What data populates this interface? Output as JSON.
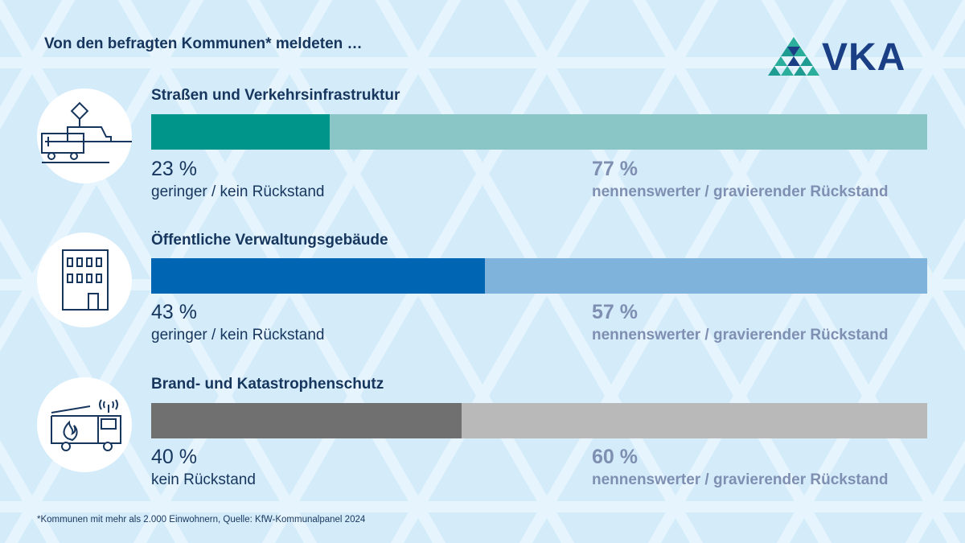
{
  "headline": "Von den befragten Kommunen* meldeten …",
  "logo_text": "VKA",
  "footnote": "*Kommunen mit mehr als 2.000 Einwohnern, Quelle: KfW-Kommunalpanel 2024",
  "chart_data": {
    "type": "bar",
    "orientation": "horizontal",
    "stacked": true,
    "title": "Von den befragten Kommunen* meldeten …",
    "categories": [
      "Straßen und Verkehrsinfrastruktur",
      "Öffentliche Verwaltungsgebäude",
      "Brand- und Katastrophenschutz"
    ],
    "icons": [
      "tram-bus-icon",
      "office-building-icon",
      "fire-truck-icon"
    ],
    "series": [
      {
        "values": [
          23,
          43,
          40
        ],
        "value_labels": [
          "23 %",
          "43 %",
          "40 %"
        ],
        "labels": [
          "geringer / kein Rückstand",
          "geringer / kein Rückstand",
          "kein Rückstand"
        ],
        "colors": [
          "#00958a",
          "#0066b3",
          "#707070"
        ]
      },
      {
        "values": [
          77,
          57,
          60
        ],
        "value_labels": [
          "77 %",
          "57 %",
          "60 %"
        ],
        "labels": [
          "nennenswerter / gravierender Rückstand",
          "nennenswerter / gravierender Rückstand",
          "nennenswerter / gravierender Rückstand"
        ],
        "colors": [
          "#8ac6c6",
          "#80b3dc",
          "#b9b9b9"
        ]
      }
    ],
    "xlim": [
      0,
      100
    ],
    "grid": false,
    "legend": "none"
  }
}
